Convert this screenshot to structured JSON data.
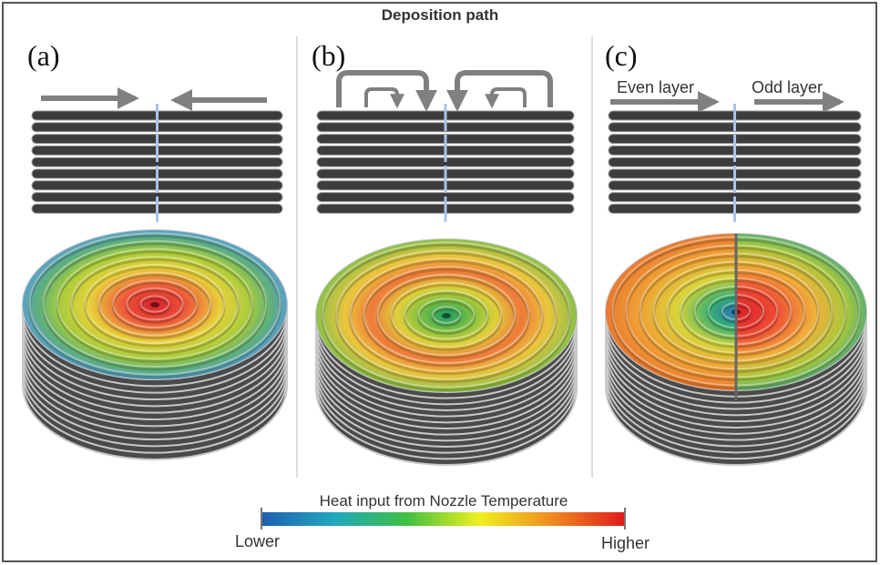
{
  "title": "Deposition path",
  "panels": [
    {
      "label": "(a)"
    },
    {
      "label": "(b)"
    },
    {
      "label": "(c)",
      "annotations": [
        "Even layer",
        "Odd layer"
      ]
    }
  ],
  "colorbar": {
    "title": "Heat input from Nozzle Temperature",
    "min_label": "Lower",
    "max_label": "Higher"
  }
}
